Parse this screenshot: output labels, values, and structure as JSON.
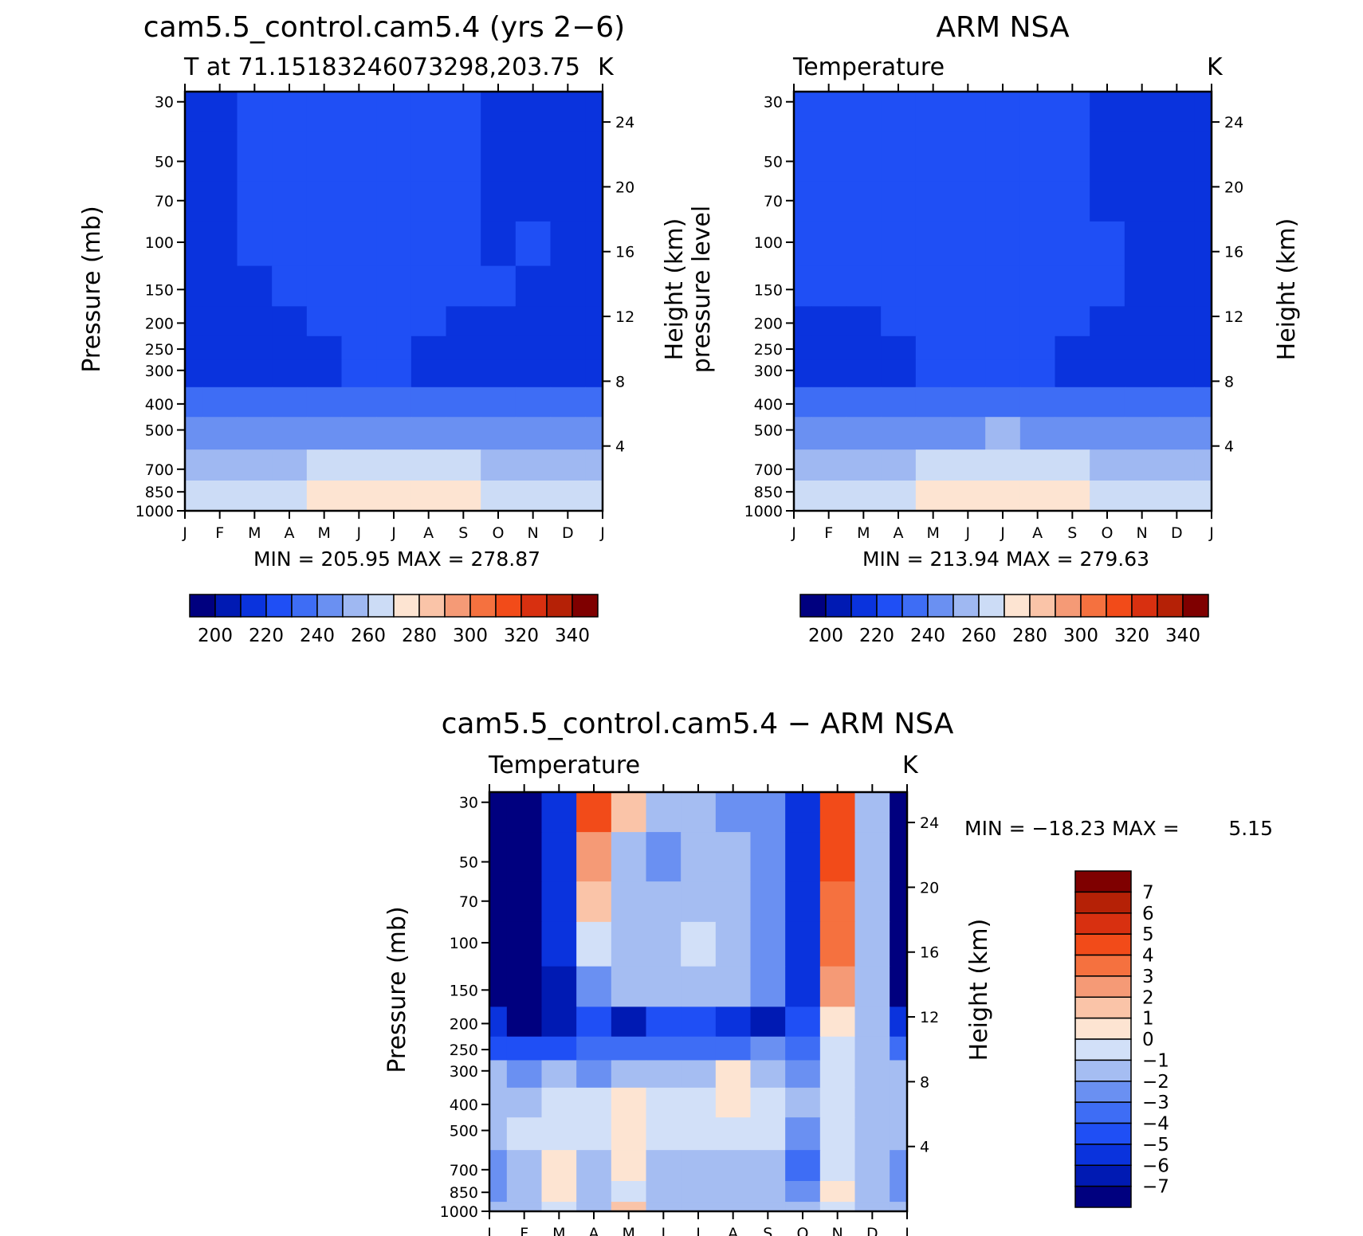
{
  "chart_data": [
    {
      "type": "heatmap",
      "title": "cam5.5_control.cam5.4 (yrs 2−6)",
      "subtitle_left": "T at 71.15183246073298,203.75",
      "subtitle_right": "K",
      "ylabel": "Pressure (mb)",
      "y2label": "Height (km)",
      "stats": "MIN =  205.95  MAX  =  278.87",
      "x": [
        "J",
        "F",
        "M",
        "A",
        "M",
        "J",
        "J",
        "A",
        "S",
        "O",
        "N",
        "D",
        "J"
      ],
      "y_ticks": [
        30,
        50,
        70,
        100,
        150,
        200,
        250,
        300,
        400,
        500,
        700,
        850,
        1000
      ],
      "height_ticks": [
        4,
        8,
        12,
        16,
        20,
        24
      ],
      "levels": [
        200,
        210,
        220,
        230,
        240,
        250,
        260,
        270,
        280,
        290,
        300,
        310,
        320,
        330,
        340
      ],
      "colorbar_labels": [
        "200",
        "220",
        "240",
        "260",
        "280",
        "300",
        "320",
        "340"
      ],
      "values": [
        [
          210,
          217,
          225,
          225,
          225,
          225,
          225,
          225,
          225,
          217,
          217,
          217,
          210
        ],
        [
          212,
          217,
          225,
          225,
          225,
          225,
          225,
          225,
          225,
          217,
          217,
          217,
          212
        ],
        [
          217,
          217,
          225,
          225,
          225,
          225,
          225,
          225,
          225,
          217,
          217,
          217,
          217
        ],
        [
          217,
          217,
          225,
          225,
          225,
          225,
          225,
          225,
          225,
          218,
          226,
          217,
          217
        ],
        [
          217,
          217,
          218,
          225,
          225,
          225,
          225,
          225,
          225,
          225,
          217,
          217,
          217
        ],
        [
          217,
          217,
          217,
          217,
          225,
          225,
          225,
          225,
          217,
          217,
          217,
          217,
          217
        ],
        [
          217,
          217,
          217,
          217,
          217,
          225,
          225,
          217,
          217,
          217,
          217,
          217,
          217
        ],
        [
          217,
          217,
          217,
          217,
          218,
          225,
          225,
          218,
          217,
          217,
          217,
          217,
          217
        ],
        [
          233,
          233,
          233,
          235,
          236,
          236,
          236,
          236,
          235,
          234,
          233,
          233,
          233
        ],
        [
          244,
          244,
          244,
          246,
          247,
          248,
          249,
          248,
          246,
          245,
          244,
          244,
          244
        ],
        [
          255,
          255,
          256,
          258,
          262,
          265,
          266,
          265,
          261,
          258,
          256,
          255,
          255
        ],
        [
          260,
          262,
          264,
          266,
          270,
          274,
          275,
          274,
          270,
          266,
          264,
          262,
          260
        ],
        [
          262,
          264,
          266,
          268,
          272,
          276,
          278,
          276,
          273,
          268,
          265,
          263,
          262
        ]
      ]
    },
    {
      "type": "heatmap",
      "title": "ARM NSA",
      "subtitle_left": "Temperature",
      "subtitle_right": "K",
      "ylabel": "pressure level",
      "y2label": "Height (km)",
      "stats": "MIN =  213.94  MAX  =  279.63",
      "x": [
        "J",
        "F",
        "M",
        "A",
        "M",
        "J",
        "J",
        "A",
        "S",
        "O",
        "N",
        "D",
        "J"
      ],
      "y_ticks": [
        30,
        50,
        70,
        100,
        150,
        200,
        250,
        300,
        400,
        500,
        700,
        850,
        1000
      ],
      "height_ticks": [
        4,
        8,
        12,
        16,
        20,
        24
      ],
      "levels": [
        200,
        210,
        220,
        230,
        240,
        250,
        260,
        270,
        280,
        290,
        300,
        310,
        320,
        330,
        340
      ],
      "colorbar_labels": [
        "200",
        "220",
        "240",
        "260",
        "280",
        "300",
        "320",
        "340"
      ],
      "values": [
        [
          225,
          225,
          225,
          225,
          225,
          225,
          226,
          225,
          225,
          217,
          217,
          217,
          217
        ],
        [
          225,
          225,
          225,
          225,
          225,
          225,
          225,
          225,
          225,
          217,
          217,
          217,
          217
        ],
        [
          225,
          225,
          225,
          225,
          225,
          225,
          225,
          225,
          225,
          218,
          217,
          217,
          217
        ],
        [
          225,
          225,
          225,
          225,
          225,
          225,
          225,
          225,
          225,
          225,
          217,
          217,
          217
        ],
        [
          225,
          225,
          225,
          225,
          225,
          225,
          225,
          225,
          225,
          225,
          217,
          217,
          217
        ],
        [
          217,
          217,
          218,
          225,
          225,
          225,
          225,
          225,
          225,
          217,
          217,
          217,
          217
        ],
        [
          217,
          217,
          217,
          218,
          225,
          225,
          225,
          225,
          217,
          217,
          217,
          217,
          217
        ],
        [
          217,
          217,
          217,
          218,
          225,
          225,
          225,
          225,
          218,
          217,
          217,
          217,
          217
        ],
        [
          233,
          233,
          233,
          235,
          236,
          237,
          237,
          236,
          235,
          234,
          233,
          233,
          233
        ],
        [
          244,
          244,
          245,
          246,
          248,
          249,
          250,
          249,
          247,
          246,
          245,
          244,
          244
        ],
        [
          255,
          255,
          256,
          258,
          262,
          265,
          266,
          265,
          262,
          258,
          256,
          255,
          255
        ],
        [
          260,
          262,
          264,
          266,
          270,
          274,
          276,
          274,
          270,
          266,
          264,
          262,
          260
        ],
        [
          262,
          264,
          266,
          268,
          272,
          277,
          279,
          277,
          273,
          268,
          265,
          263,
          262
        ]
      ]
    },
    {
      "type": "heatmap",
      "title": "cam5.5_control.cam5.4 − ARM NSA",
      "subtitle_left": "Temperature",
      "subtitle_right": "K",
      "ylabel": "Pressure (mb)",
      "y2label": "Height (km)",
      "stats_label": "MIN =  −18.23  MAX  =",
      "stats_value": "5.15",
      "x": [
        "J",
        "F",
        "M",
        "A",
        "M",
        "J",
        "J",
        "A",
        "S",
        "O",
        "N",
        "D",
        "J"
      ],
      "y_ticks": [
        30,
        50,
        70,
        100,
        150,
        200,
        250,
        300,
        400,
        500,
        700,
        850,
        1000
      ],
      "height_ticks": [
        4,
        8,
        12,
        16,
        20,
        24
      ],
      "levels": [
        -7,
        -6,
        -5,
        -4,
        -3,
        -2,
        -1,
        0,
        1,
        2,
        3,
        4,
        5,
        6,
        7
      ],
      "colorbar_labels": [
        "7",
        "6",
        "5",
        "4",
        "3",
        "2",
        "1",
        "0",
        "−1",
        "−2",
        "−3",
        "−4",
        "−5",
        "−6",
        "−7"
      ],
      "values": [
        [
          -9,
          -9,
          -6,
          4.5,
          1,
          -1.5,
          -1.5,
          -3,
          -3,
          -6,
          4.5,
          -2,
          -9
        ],
        [
          -9,
          -9,
          -6,
          2.5,
          -1.5,
          -3,
          -1.5,
          -2,
          -3,
          -6,
          4.5,
          -2,
          -9
        ],
        [
          -9,
          -9,
          -6,
          1.5,
          -1.5,
          -2,
          -1.5,
          -2,
          -3,
          -6,
          3.5,
          -2,
          -9
        ],
        [
          -9,
          -9,
          -6,
          -0.5,
          -1.5,
          -1.5,
          -0.5,
          -1.5,
          -3,
          -6,
          3.5,
          -2,
          -9
        ],
        [
          -8,
          -9,
          -7,
          -3,
          -2,
          -2,
          -1.5,
          -2,
          -3,
          -6,
          2.5,
          -2,
          -8
        ],
        [
          -6,
          -7.5,
          -7,
          -5,
          -6.5,
          -5,
          -5,
          -6,
          -7,
          -5,
          0.5,
          -2,
          -6
        ],
        [
          -4.5,
          -5,
          -5,
          -4,
          -4,
          -4,
          -4,
          -3.5,
          -3,
          -3.5,
          -1,
          -2,
          -4
        ],
        [
          -2,
          -3,
          -2,
          -2.5,
          -2,
          -2,
          -2,
          0.5,
          -1.5,
          -2.5,
          -1,
          -1.5,
          -2
        ],
        [
          -1.5,
          -1.5,
          -1,
          -1,
          0.5,
          -1,
          -1,
          0.5,
          -1,
          -2,
          -0.5,
          -1.5,
          -1.5
        ],
        [
          -2,
          -1,
          -0.5,
          -1,
          0.5,
          -1,
          -1,
          -0.5,
          -1,
          -2.5,
          -0.5,
          -1.5,
          -2
        ],
        [
          -3,
          -1.5,
          0.5,
          -1.5,
          0.5,
          -2,
          -1.5,
          -2,
          -2,
          -3.5,
          -0.5,
          -2,
          -3
        ],
        [
          -2.5,
          -1.5,
          0.5,
          -2,
          -0.5,
          -2,
          -2,
          -1.5,
          -2,
          -3,
          0.5,
          -2,
          -2.5
        ],
        [
          -2,
          -1.5,
          -1,
          -1.5,
          1.5,
          -1.5,
          -1.5,
          -1.5,
          -1.5,
          -2,
          -1,
          -1.5,
          -2
        ]
      ]
    }
  ],
  "palettes": {
    "temp": [
      "#00007f",
      "#001ab3",
      "#0a33dd",
      "#1f4ff5",
      "#3e6df5",
      "#6a90f2",
      "#9fb8f2",
      "#ccdcf6",
      "#fde4d2",
      "#fac4a8",
      "#f59a76",
      "#f5713f",
      "#f24b19",
      "#d83010",
      "#b52106",
      "#7f0000"
    ],
    "diff": [
      "#00007f",
      "#001ab3",
      "#0a33dd",
      "#1f4ff5",
      "#3e6df5",
      "#6a90f2",
      "#a5bdf2",
      "#d2e0f8",
      "#fde4d2",
      "#fac4a8",
      "#f59a76",
      "#f5713f",
      "#f24b19",
      "#d83010",
      "#b52106",
      "#7f0000"
    ]
  }
}
